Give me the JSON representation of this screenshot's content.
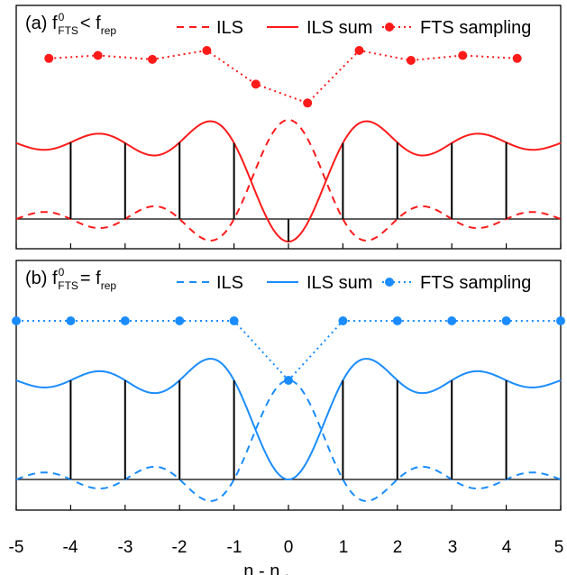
{
  "chart_data": [
    {
      "type": "line",
      "panel_label": "(a)",
      "title_parts": {
        "f": "f",
        "sup": "0",
        "sub": "FTS",
        "rel": "<",
        "f2": "f",
        "sub2": "rep"
      },
      "color": "#ff1a1a",
      "legend": [
        "ILS",
        "ILS sum",
        "FTS sampling"
      ],
      "sample_stems_x": [
        -4,
        -3,
        -2,
        -1,
        0,
        1,
        2,
        3,
        4
      ],
      "ils_center_x": 0,
      "fts_sampling_points": [
        {
          "x": -4.4,
          "y": 1.62
        },
        {
          "x": -3.5,
          "y": 1.65
        },
        {
          "x": -2.5,
          "y": 1.61
        },
        {
          "x": -1.5,
          "y": 1.7
        },
        {
          "x": -0.6,
          "y": 1.36
        },
        {
          "x": 0.35,
          "y": 1.17
        },
        {
          "x": 1.3,
          "y": 1.7
        },
        {
          "x": 2.25,
          "y": 1.6
        },
        {
          "x": 3.2,
          "y": 1.65
        },
        {
          "x": 4.2,
          "y": 1.62
        }
      ],
      "xlim": [
        -5,
        5
      ],
      "ylim": [
        -0.25,
        2.05
      ]
    },
    {
      "type": "line",
      "panel_label": "(b)",
      "title_parts": {
        "f": "f",
        "sup": "0",
        "sub": "FTS",
        "rel": "=",
        "f2": "f",
        "sub2": "rep"
      },
      "color": "#1a8cff",
      "legend": [
        "ILS",
        "ILS sum",
        "FTS sampling"
      ],
      "sample_stems_x": [
        -4,
        -3,
        -2,
        -1,
        0,
        1,
        2,
        3,
        4
      ],
      "ils_center_x": 0,
      "fts_sampling_points": [
        {
          "x": -5,
          "y": 1.6
        },
        {
          "x": -4,
          "y": 1.6
        },
        {
          "x": -3,
          "y": 1.6
        },
        {
          "x": -2,
          "y": 1.6
        },
        {
          "x": -1,
          "y": 1.6
        },
        {
          "x": 0,
          "y": 1.0
        },
        {
          "x": 1,
          "y": 1.6
        },
        {
          "x": 2,
          "y": 1.6
        },
        {
          "x": 3,
          "y": 1.6
        },
        {
          "x": 4,
          "y": 1.6
        },
        {
          "x": 5,
          "y": 1.6
        }
      ],
      "xlim": [
        -5,
        5
      ],
      "ylim": [
        -0.25,
        2.05
      ]
    }
  ],
  "x_ticks": [
    "-5",
    "-4",
    "-3",
    "-2",
    "-1",
    "0",
    "1",
    "2",
    "3",
    "4",
    "5"
  ],
  "x_label": {
    "main": "n - n",
    "sub": "abs"
  }
}
